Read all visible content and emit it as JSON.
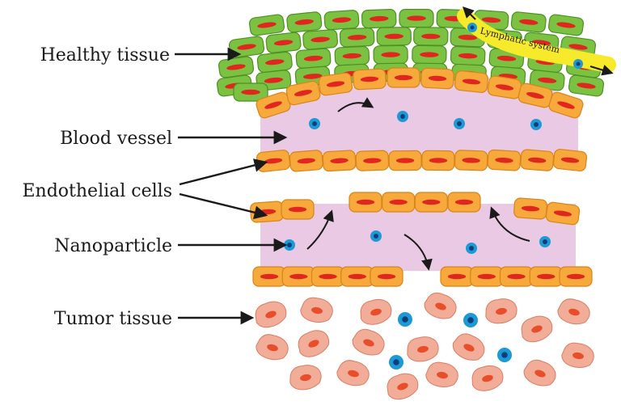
{
  "labels": {
    "healthy_tissue": "Healthy tissue",
    "blood_vessel": "Blood vessel",
    "endothelial_cells": "Endothelial cells",
    "nanoparticle": "Nanoparticle",
    "tumor_tissue": "Tumor tissue",
    "lymphatic_system": "Lymphatic system"
  },
  "colors": {
    "healthy_cell": "#7cc242",
    "endothelial_cell": "#f7a93b",
    "nucleus": "#e0261f",
    "vessel_lumen": "#e9c9e3",
    "tumor_cell": "#f2ad98",
    "nanoparticle": "#1d9ad6",
    "lymphatic_vessel": "#f7ea2b"
  }
}
